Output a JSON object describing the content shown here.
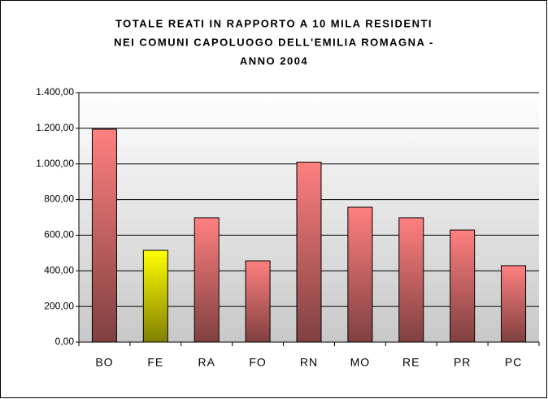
{
  "chart_data": {
    "type": "bar",
    "title": [
      "TOTALE REATI IN RAPPORTO A 10 MILA RESIDENTI",
      "NEI COMUNI CAPOLUOGO DELL'EMILIA ROMAGNA -",
      "ANNO 2004"
    ],
    "categories": [
      "BO",
      "FE",
      "RA",
      "FO",
      "RN",
      "MO",
      "RE",
      "PR",
      "PC"
    ],
    "values": [
      1195,
      515,
      698,
      456,
      1010,
      757,
      698,
      629,
      429
    ],
    "colors": [
      "#ff8080",
      "#ffff00",
      "#ff8080",
      "#ff8080",
      "#ff8080",
      "#ff8080",
      "#ff8080",
      "#ff8080",
      "#ff8080"
    ],
    "ylim": [
      0,
      1400
    ],
    "yticks": [
      {
        "value": 0,
        "label": "0,00"
      },
      {
        "value": 200,
        "label": "200,00"
      },
      {
        "value": 400,
        "label": "400,00"
      },
      {
        "value": 600,
        "label": "600,00"
      },
      {
        "value": 800,
        "label": "800,00"
      },
      {
        "value": 1000,
        "label": "1.000,00"
      },
      {
        "value": 1200,
        "label": "1.200,00"
      },
      {
        "value": 1400,
        "label": "1.400,00"
      }
    ],
    "grid": true
  }
}
